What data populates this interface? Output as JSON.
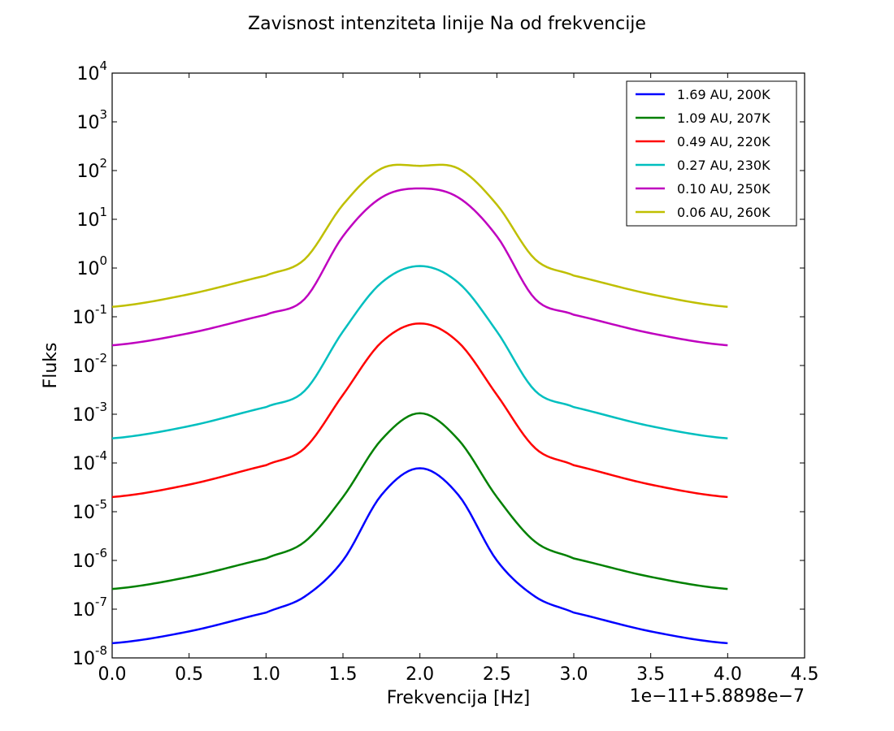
{
  "chart_data": {
    "type": "line",
    "title": "Zavisnost intenziteta linije Na od frekvencije",
    "xlabel": "Frekvencija [Hz]",
    "ylabel": "Fluks",
    "offset_label": "1e−11+5.8898e−7",
    "xlim": [
      0,
      4.5
    ],
    "ylim": [
      1e-08,
      10000.0
    ],
    "yscale": "log",
    "x_ticks": [
      "0.0",
      "0.5",
      "1.0",
      "1.5",
      "2.0",
      "2.5",
      "3.0",
      "3.5",
      "4.0",
      "4.5"
    ],
    "y_ticks": [
      {
        "base": "10",
        "exp": "-8"
      },
      {
        "base": "10",
        "exp": "-7"
      },
      {
        "base": "10",
        "exp": "-6"
      },
      {
        "base": "10",
        "exp": "-5"
      },
      {
        "base": "10",
        "exp": "-4"
      },
      {
        "base": "10",
        "exp": "-3"
      },
      {
        "base": "10",
        "exp": "-2"
      },
      {
        "base": "10",
        "exp": "-1"
      },
      {
        "base": "10",
        "exp": "0"
      },
      {
        "base": "10",
        "exp": "1"
      },
      {
        "base": "10",
        "exp": "2"
      },
      {
        "base": "10",
        "exp": "3"
      },
      {
        "base": "10",
        "exp": "4"
      }
    ],
    "legend_position": "top-right",
    "grid": false,
    "x": [
      0.0,
      0.5,
      1.0,
      1.25,
      1.5,
      1.75,
      2.0,
      2.25,
      2.5,
      2.75,
      3.0,
      3.5,
      4.0
    ],
    "series": [
      {
        "name": "1.69 AU, 200K",
        "color": "#0000ff",
        "values": [
          2e-08,
          3.5e-08,
          8.5e-08,
          1.8e-07,
          1e-06,
          2.2e-05,
          7.8e-05,
          2.2e-05,
          1e-06,
          1.8e-07,
          8.5e-08,
          3.5e-08,
          2e-08
        ]
      },
      {
        "name": "1.09 AU, 207K",
        "color": "#008000",
        "values": [
          2.6e-07,
          4.6e-07,
          1.1e-06,
          2.4e-06,
          2e-05,
          0.0003,
          0.00105,
          0.0003,
          2e-05,
          2.4e-06,
          1.1e-06,
          4.6e-07,
          2.6e-07
        ]
      },
      {
        "name": "0.49 AU, 220K",
        "color": "#ff0000",
        "values": [
          2e-05,
          3.6e-05,
          9e-05,
          0.0002,
          0.0025,
          0.03,
          0.073,
          0.03,
          0.0025,
          0.0002,
          9e-05,
          3.6e-05,
          2e-05
        ]
      },
      {
        "name": "0.27 AU, 230K",
        "color": "#00bfbf",
        "values": [
          0.00032,
          0.00057,
          0.0014,
          0.003,
          0.05,
          0.5,
          1.1,
          0.5,
          0.05,
          0.003,
          0.0014,
          0.00057,
          0.00032
        ]
      },
      {
        "name": "0.10 AU, 250K",
        "color": "#bf00bf",
        "values": [
          0.026,
          0.046,
          0.11,
          0.23,
          4.5,
          28.0,
          43.0,
          28.0,
          4.5,
          0.23,
          0.11,
          0.046,
          0.026
        ]
      },
      {
        "name": "0.06 AU, 260K",
        "color": "#bfbf00",
        "values": [
          0.16,
          0.29,
          0.7,
          1.5,
          20.0,
          110.0,
          125.0,
          110.0,
          20.0,
          1.5,
          0.7,
          0.29,
          0.16
        ]
      }
    ]
  }
}
